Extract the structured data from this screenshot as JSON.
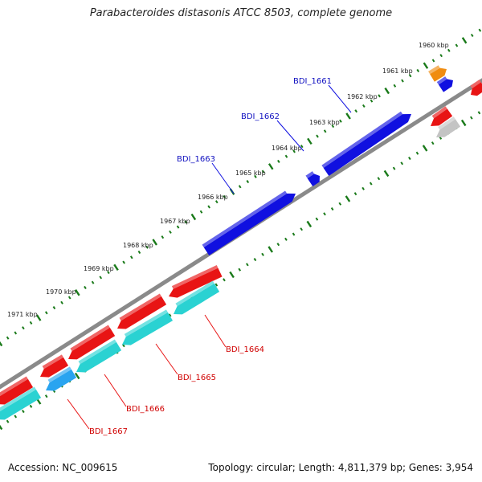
{
  "title": "Parabacteroides distasonis ATCC 8503, complete genome",
  "footer": {
    "accession": "Accession: NC_009615",
    "summary": "Topology: circular; Length: 4,811,379 bp; Genes: 3,954"
  },
  "colors": {
    "background": "#ffffff",
    "backbone": "#8a8a8a",
    "tick": "#1a7a1a",
    "forward_gene": "#1010e0",
    "reverse_gene": "#e81414",
    "rna_gene": "#2ad2d2",
    "highlight_gene": "#2aa4f0",
    "orange_gene": "#f08c10",
    "grey_gene": "#c4c4c4",
    "label_forward": "#1010c0",
    "label_reverse": "#d00000"
  },
  "ruler": {
    "labels": [
      "1960 kbp",
      "1961 kbp",
      "1962 kbp",
      "1963 kbp",
      "1964 kbp",
      "1965 kbp",
      "1966 kbp",
      "1967 kbp",
      "1968 kbp",
      "1969 kbp",
      "1970 kbp",
      "1971 kbp"
    ]
  },
  "gene_labels": [
    {
      "name": "BDI_1661",
      "strand": "forward"
    },
    {
      "name": "BDI_1662",
      "strand": "forward"
    },
    {
      "name": "BDI_1663",
      "strand": "forward"
    },
    {
      "name": "BDI_1664",
      "strand": "reverse"
    },
    {
      "name": "BDI_1665",
      "strand": "reverse"
    },
    {
      "name": "BDI_1666",
      "strand": "reverse"
    },
    {
      "name": "BDI_1667",
      "strand": "reverse"
    }
  ]
}
